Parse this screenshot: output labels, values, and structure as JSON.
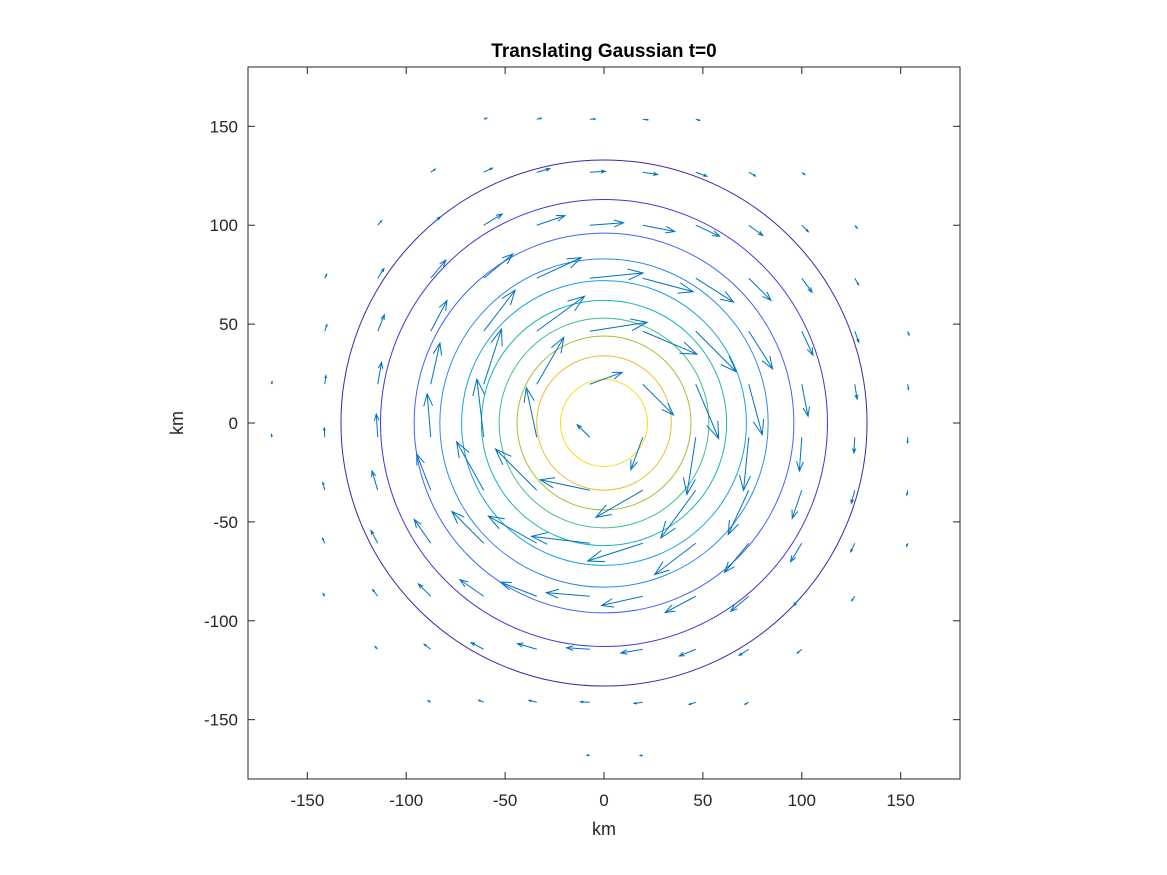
{
  "chart_data": {
    "type": "quiver-contour",
    "title": "Translating Gaussian t=0",
    "xlabel": "km",
    "ylabel": "km",
    "xlim": [
      -180,
      180
    ],
    "ylim": [
      -180,
      180
    ],
    "xticks": [
      -150,
      -100,
      -50,
      0,
      50,
      100,
      150
    ],
    "yticks": [
      -150,
      -100,
      -50,
      0,
      50,
      100,
      150
    ],
    "xtick_labels": [
      "-150",
      "-100",
      "-50",
      "0",
      "50",
      "100",
      "150"
    ],
    "ytick_labels": [
      "-150",
      "-100",
      "-50",
      "0",
      "50",
      "100",
      "150"
    ],
    "grid": false,
    "legend": "none",
    "vortex_center": [
      0,
      0
    ],
    "rotation": "clockwise",
    "contour_radii": [
      133,
      113,
      96,
      83,
      72,
      62,
      53,
      44,
      34,
      22
    ],
    "contour_colors": [
      "#3e26a8",
      "#4535d8",
      "#3c64f8",
      "#2c88f4",
      "#17a3da",
      "#14b5b5",
      "#3fc084",
      "#a6be37",
      "#efb92d",
      "#f6dc1c"
    ],
    "quiver": {
      "grid_spacing": 26.8,
      "grid_extent": [
        -168,
        168
      ],
      "circular_domain_radius": 170,
      "peak_speed_radius": 55,
      "color": "#0072bd"
    }
  }
}
